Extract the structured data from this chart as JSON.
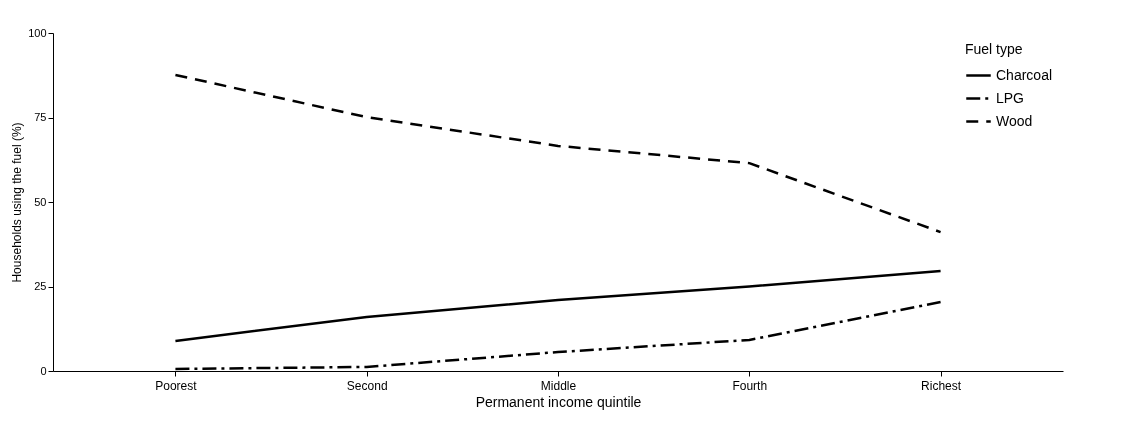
{
  "chart_data": {
    "type": "line",
    "xlabel": "Permanent income quintile",
    "ylabel": "Households using the fuel (%)",
    "legend_title": "Fuel type",
    "categories": [
      "Poorest",
      "Second",
      "Middle",
      "Fourth",
      "Richest"
    ],
    "ylim": [
      0,
      100
    ],
    "yticks": [
      0,
      25,
      50,
      75,
      100
    ],
    "grid": false,
    "legend": "top right",
    "marker": "none",
    "series": [
      {
        "name": "Charcoal",
        "color": "#000000",
        "line_style": "solid",
        "values": [
          8.9,
          16,
          21,
          25,
          29.6
        ]
      },
      {
        "name": "LPG",
        "color": "#000000",
        "line_style": "dashdot",
        "values": [
          0.6,
          1.2,
          5.6,
          9.2,
          20.4
        ]
      },
      {
        "name": "Wood",
        "color": "#000000",
        "line_style": "dashed",
        "values": [
          87.6,
          75.1,
          66.6,
          61.5,
          41.1
        ]
      }
    ]
  }
}
